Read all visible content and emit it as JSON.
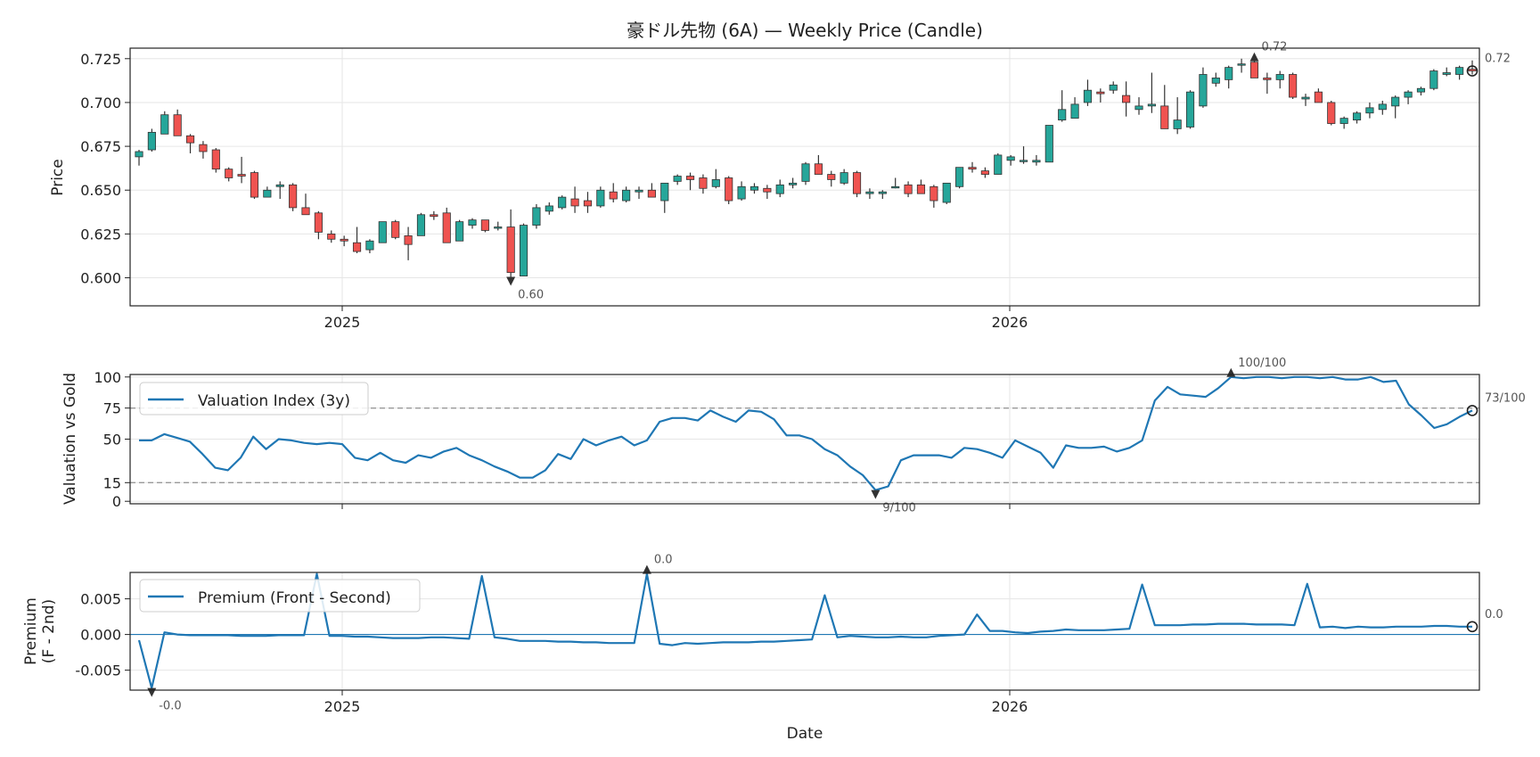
{
  "title": "豪ドル先物 (6A) — Weekly Price (Candle)",
  "colors": {
    "up": "#26a69a",
    "down": "#ef5350",
    "line": "#1f77b4",
    "marker": "#333333",
    "ref_line": "#999999"
  },
  "chart_data": [
    {
      "type": "candlestick",
      "ylabel": "Price",
      "ylim": [
        0.584,
        0.731
      ],
      "yticks": [
        "0.600",
        "0.625",
        "0.650",
        "0.675",
        "0.700",
        "0.725"
      ],
      "xticks": [
        "2025",
        "2026"
      ],
      "grid": true,
      "candles": [
        [
          0.669,
          0.673,
          0.664,
          0.672
        ],
        [
          0.673,
          0.685,
          0.672,
          0.683
        ],
        [
          0.682,
          0.695,
          0.682,
          0.693
        ],
        [
          0.693,
          0.696,
          0.681,
          0.681
        ],
        [
          0.681,
          0.682,
          0.671,
          0.677
        ],
        [
          0.676,
          0.678,
          0.668,
          0.672
        ],
        [
          0.673,
          0.674,
          0.66,
          0.662
        ],
        [
          0.662,
          0.663,
          0.655,
          0.657
        ],
        [
          0.659,
          0.669,
          0.654,
          0.658
        ],
        [
          0.66,
          0.661,
          0.645,
          0.646
        ],
        [
          0.646,
          0.652,
          0.646,
          0.65
        ],
        [
          0.652,
          0.655,
          0.645,
          0.653
        ],
        [
          0.653,
          0.654,
          0.638,
          0.64
        ],
        [
          0.64,
          0.648,
          0.636,
          0.636
        ],
        [
          0.637,
          0.638,
          0.622,
          0.626
        ],
        [
          0.625,
          0.627,
          0.62,
          0.622
        ],
        [
          0.622,
          0.624,
          0.618,
          0.621
        ],
        [
          0.62,
          0.629,
          0.614,
          0.615
        ],
        [
          0.616,
          0.622,
          0.614,
          0.621
        ],
        [
          0.62,
          0.632,
          0.62,
          0.632
        ],
        [
          0.632,
          0.633,
          0.622,
          0.623
        ],
        [
          0.624,
          0.629,
          0.61,
          0.619
        ],
        [
          0.624,
          0.637,
          0.624,
          0.636
        ],
        [
          0.636,
          0.638,
          0.633,
          0.635
        ],
        [
          0.637,
          0.64,
          0.62,
          0.62
        ],
        [
          0.621,
          0.633,
          0.621,
          0.632
        ],
        [
          0.63,
          0.634,
          0.628,
          0.633
        ],
        [
          0.633,
          0.633,
          0.626,
          0.627
        ],
        [
          0.629,
          0.632,
          0.627,
          0.629
        ],
        [
          0.629,
          0.639,
          0.6,
          0.603
        ],
        [
          0.601,
          0.631,
          0.601,
          0.63
        ],
        [
          0.63,
          0.642,
          0.628,
          0.64
        ],
        [
          0.638,
          0.643,
          0.636,
          0.641
        ],
        [
          0.64,
          0.647,
          0.639,
          0.646
        ],
        [
          0.645,
          0.652,
          0.637,
          0.641
        ],
        [
          0.644,
          0.649,
          0.637,
          0.641
        ],
        [
          0.641,
          0.652,
          0.64,
          0.65
        ],
        [
          0.649,
          0.654,
          0.643,
          0.645
        ],
        [
          0.644,
          0.652,
          0.643,
          0.65
        ],
        [
          0.649,
          0.652,
          0.645,
          0.65
        ],
        [
          0.65,
          0.654,
          0.646,
          0.646
        ],
        [
          0.644,
          0.654,
          0.637,
          0.654
        ],
        [
          0.655,
          0.659,
          0.653,
          0.658
        ],
        [
          0.658,
          0.66,
          0.65,
          0.656
        ],
        [
          0.657,
          0.659,
          0.648,
          0.651
        ],
        [
          0.652,
          0.662,
          0.651,
          0.656
        ],
        [
          0.657,
          0.658,
          0.642,
          0.644
        ],
        [
          0.645,
          0.655,
          0.644,
          0.652
        ],
        [
          0.65,
          0.654,
          0.648,
          0.652
        ],
        [
          0.651,
          0.653,
          0.645,
          0.649
        ],
        [
          0.648,
          0.656,
          0.646,
          0.653
        ],
        [
          0.653,
          0.657,
          0.651,
          0.654
        ],
        [
          0.655,
          0.666,
          0.653,
          0.665
        ],
        [
          0.665,
          0.67,
          0.659,
          0.659
        ],
        [
          0.659,
          0.661,
          0.652,
          0.656
        ],
        [
          0.654,
          0.662,
          0.653,
          0.66
        ],
        [
          0.66,
          0.661,
          0.646,
          0.648
        ],
        [
          0.648,
          0.651,
          0.645,
          0.649
        ],
        [
          0.648,
          0.65,
          0.645,
          0.649
        ],
        [
          0.652,
          0.657,
          0.651,
          0.652
        ],
        [
          0.653,
          0.655,
          0.646,
          0.648
        ],
        [
          0.653,
          0.656,
          0.648,
          0.648
        ],
        [
          0.652,
          0.653,
          0.64,
          0.644
        ],
        [
          0.643,
          0.654,
          0.642,
          0.654
        ],
        [
          0.652,
          0.663,
          0.651,
          0.663
        ],
        [
          0.663,
          0.666,
          0.66,
          0.662
        ],
        [
          0.661,
          0.663,
          0.657,
          0.659
        ],
        [
          0.659,
          0.671,
          0.659,
          0.67
        ],
        [
          0.667,
          0.67,
          0.664,
          0.669
        ],
        [
          0.667,
          0.675,
          0.665,
          0.667
        ],
        [
          0.666,
          0.67,
          0.664,
          0.667
        ],
        [
          0.666,
          0.687,
          0.666,
          0.687
        ],
        [
          0.69,
          0.707,
          0.689,
          0.696
        ],
        [
          0.691,
          0.703,
          0.691,
          0.699
        ],
        [
          0.7,
          0.713,
          0.698,
          0.707
        ],
        [
          0.706,
          0.708,
          0.7,
          0.705
        ],
        [
          0.707,
          0.712,
          0.705,
          0.71
        ],
        [
          0.704,
          0.712,
          0.692,
          0.7
        ],
        [
          0.696,
          0.703,
          0.693,
          0.698
        ],
        [
          0.698,
          0.717,
          0.694,
          0.699
        ],
        [
          0.698,
          0.71,
          0.685,
          0.685
        ],
        [
          0.685,
          0.703,
          0.682,
          0.69
        ],
        [
          0.686,
          0.707,
          0.685,
          0.706
        ],
        [
          0.698,
          0.72,
          0.697,
          0.716
        ],
        [
          0.711,
          0.717,
          0.709,
          0.714
        ],
        [
          0.713,
          0.721,
          0.708,
          0.72
        ],
        [
          0.722,
          0.725,
          0.717,
          0.722
        ],
        [
          0.723,
          0.724,
          0.714,
          0.714
        ],
        [
          0.714,
          0.717,
          0.705,
          0.713
        ],
        [
          0.713,
          0.718,
          0.708,
          0.716
        ],
        [
          0.716,
          0.717,
          0.702,
          0.703
        ],
        [
          0.702,
          0.705,
          0.698,
          0.703
        ],
        [
          0.706,
          0.708,
          0.7,
          0.7
        ],
        [
          0.7,
          0.701,
          0.687,
          0.688
        ],
        [
          0.688,
          0.692,
          0.685,
          0.691
        ],
        [
          0.69,
          0.695,
          0.688,
          0.694
        ],
        [
          0.694,
          0.7,
          0.691,
          0.697
        ],
        [
          0.696,
          0.701,
          0.693,
          0.699
        ],
        [
          0.698,
          0.704,
          0.691,
          0.703
        ],
        [
          0.703,
          0.707,
          0.699,
          0.706
        ],
        [
          0.706,
          0.709,
          0.704,
          0.708
        ],
        [
          0.708,
          0.719,
          0.707,
          0.718
        ],
        [
          0.716,
          0.72,
          0.715,
          0.717
        ],
        [
          0.716,
          0.721,
          0.713,
          0.72
        ],
        [
          0.719,
          0.724,
          0.716,
          0.718
        ]
      ],
      "annotations": [
        {
          "label": "0.72",
          "index": 87,
          "value": 0.7235,
          "dir": "up"
        },
        {
          "label": "0.60",
          "index": 29,
          "value": 0.6005,
          "dir": "down"
        },
        {
          "label": "0.72",
          "index": 104,
          "value": 0.718,
          "dir": "last"
        }
      ]
    },
    {
      "type": "line",
      "ylabel": "Valuation vs Gold",
      "ylim": [
        -2,
        102
      ],
      "yticks": [
        "0",
        "15",
        "50",
        "75",
        "100"
      ],
      "ref_lines": [
        15,
        75
      ],
      "legend": "Valuation Index (3y)",
      "legend_position": "upper-left",
      "values": [
        49,
        49,
        54,
        51,
        48,
        38,
        27,
        25,
        35,
        52,
        42,
        50,
        49,
        47,
        46,
        47,
        46,
        35,
        33,
        39,
        33,
        31,
        37,
        35,
        40,
        43,
        37,
        33,
        28,
        24,
        19,
        19,
        25,
        38,
        34,
        50,
        45,
        49,
        52,
        45,
        49,
        64,
        67,
        67,
        65,
        73,
        68,
        64,
        73,
        72,
        66,
        53,
        53,
        50,
        42,
        37,
        28,
        21,
        9,
        12,
        33,
        37,
        37,
        37,
        35,
        43,
        42,
        39,
        35,
        49,
        44,
        39,
        27,
        45,
        43,
        43,
        44,
        40,
        43,
        49,
        81,
        92,
        86,
        85,
        84,
        91,
        100,
        99,
        100,
        100,
        99,
        100,
        100,
        99,
        100,
        98,
        98,
        100,
        96,
        97,
        78,
        69,
        59,
        62,
        68,
        73
      ],
      "annotations": [
        {
          "label": "100/100",
          "index": 86,
          "value": 100,
          "dir": "up"
        },
        {
          "label": "9/100",
          "index": 58,
          "value": 9,
          "dir": "down"
        },
        {
          "label": "73/100",
          "index": 105,
          "value": 73,
          "dir": "last"
        }
      ]
    },
    {
      "type": "line",
      "ylabel": [
        "Premium",
        "(F - 2nd)"
      ],
      "xlabel": "Date",
      "ylim": [
        -0.0078,
        0.0087
      ],
      "yticks": [
        "-0.005",
        "0.000",
        "0.005"
      ],
      "xticks": [
        "2025",
        "2026"
      ],
      "ref_lines": [
        0
      ],
      "legend": "Premium (Front - Second)",
      "legend_position": "upper-left",
      "values": [
        -0.0008,
        -0.0075,
        0.0003,
        0.0,
        -0.0001,
        -0.0001,
        -0.0001,
        -0.0001,
        -0.0002,
        -0.0002,
        -0.0002,
        -0.0001,
        -0.0001,
        -0.0001,
        0.0085,
        -0.0002,
        -0.0002,
        -0.0003,
        -0.0003,
        -0.0004,
        -0.0005,
        -0.0005,
        -0.0005,
        -0.0004,
        -0.0004,
        -0.0005,
        -0.0006,
        0.0082,
        -0.0004,
        -0.0006,
        -0.0009,
        -0.0009,
        -0.0009,
        -0.001,
        -0.001,
        -0.0011,
        -0.0011,
        -0.0012,
        -0.0012,
        -0.0012,
        0.0085,
        -0.0013,
        -0.0015,
        -0.0012,
        -0.0013,
        -0.0012,
        -0.0011,
        -0.0011,
        -0.0011,
        -0.001,
        -0.001,
        -0.0009,
        -0.0008,
        -0.0007,
        0.0055,
        -0.0004,
        -0.0002,
        -0.0003,
        -0.0004,
        -0.0004,
        -0.0003,
        -0.0004,
        -0.0004,
        -0.0002,
        -0.0001,
        0.0,
        0.0028,
        0.0005,
        0.0005,
        0.0003,
        0.0002,
        0.0004,
        0.0005,
        0.0007,
        0.0006,
        0.0006,
        0.0006,
        0.0007,
        0.0008,
        0.007,
        0.0013,
        0.0013,
        0.0013,
        0.0014,
        0.0014,
        0.0015,
        0.0015,
        0.0015,
        0.0014,
        0.0014,
        0.0014,
        0.0013,
        0.0071,
        0.001,
        0.0011,
        0.0009,
        0.0011,
        0.001,
        0.001,
        0.0011,
        0.0011,
        0.0011,
        0.0012,
        0.0012,
        0.0011,
        0.0011
      ],
      "annotations": [
        {
          "label": "0.0",
          "index": 40,
          "value": 0.0085,
          "dir": "up"
        },
        {
          "label": "-0.0",
          "index": 1,
          "value": -0.0075,
          "dir": "down"
        },
        {
          "label": "0.0",
          "index": 105,
          "value": 0.0011,
          "dir": "last"
        }
      ]
    }
  ]
}
